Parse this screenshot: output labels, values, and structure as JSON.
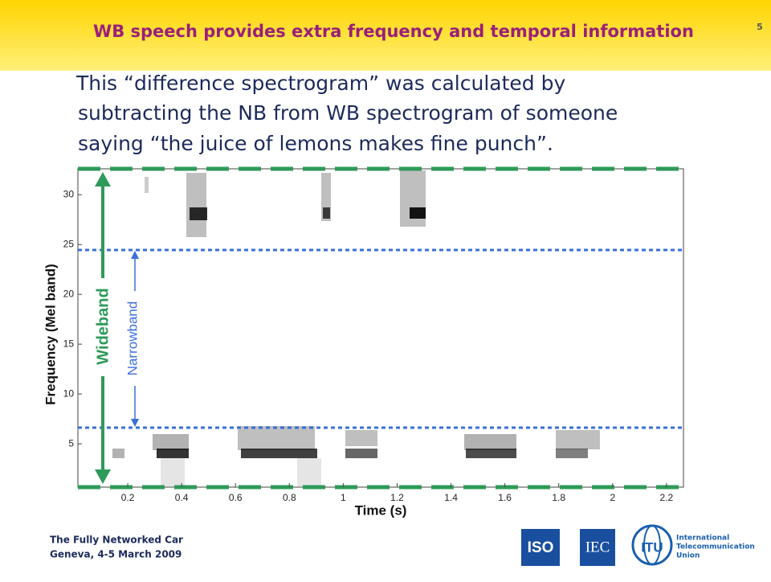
{
  "header": {
    "title": "WB speech provides extra frequency and temporal information",
    "page_number": "5"
  },
  "body": {
    "lines": [
      "This “difference spectrogram” was calculated by",
      "subtracting the NB from WB spectrogram of someone",
      "saying “the juice of lemons makes fine punch”."
    ]
  },
  "figure": {
    "x_label": "Time (s)",
    "y_label": "Frequency (Mel band)",
    "xlim": [
      0.015,
      2.263
    ],
    "xticks": [
      0.2,
      0.4,
      0.6,
      0.8,
      1,
      1.2,
      1.4,
      1.6,
      1.8,
      2,
      2.2
    ],
    "ylim": [
      0.65,
      32.6
    ],
    "yticks": [
      5,
      10,
      15,
      20,
      25,
      30
    ],
    "wideband_label": "Wideband",
    "narrowband_label": "Narrowband"
  },
  "footer": {
    "line1": "The Fully Networked Car",
    "line2": "Geneva, 4-5 March 2009",
    "iso": "ISO",
    "iec": "IEC",
    "itu": "ITU",
    "itu_name": [
      "International",
      "Telecommunication",
      "Union"
    ]
  }
}
